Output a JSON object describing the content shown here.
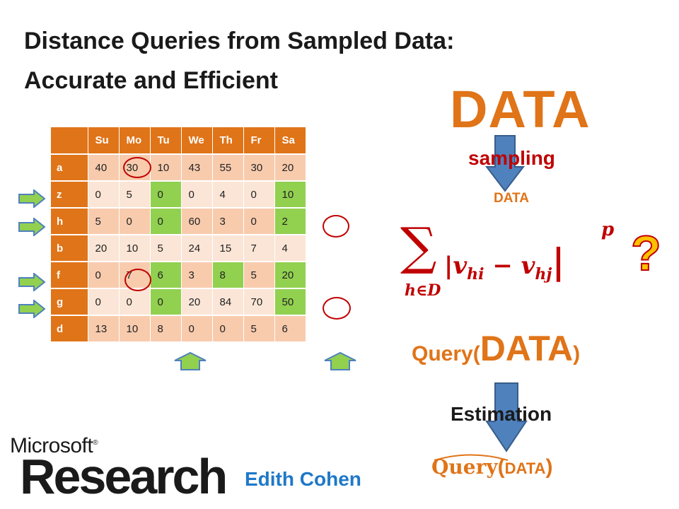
{
  "slide": {
    "title_line1": "Distance Queries from Sampled Data:",
    "title_line2": "Accurate and Efficient",
    "data_big": "DATA",
    "sampling": "sampling",
    "data_small": "DATA",
    "question_mark": "?",
    "query_prefix": "Query(",
    "query_data": "DATA",
    "query_suffix": ")",
    "estimation": "Estimation",
    "qhat_word": "Query",
    "qhat_open": "(",
    "qhat_data": "DATA",
    "qhat_close": ")",
    "author": "Edith Cohen",
    "logo_microsoft": "Microsoft",
    "logo_registered": "®",
    "logo_research": "Research",
    "colors": {
      "orange": "#e07418",
      "green": "#92d050",
      "red": "#c00000",
      "blue": "#1f78c8",
      "arrow_blue": "#4f81bd"
    }
  },
  "table": {
    "columns": [
      "Su",
      "Mo",
      "Tu",
      "We",
      "Th",
      "Fr",
      "Sa"
    ],
    "rows": [
      {
        "label": "a",
        "values": [
          "40",
          "30",
          "10",
          "43",
          "55",
          "30",
          "20"
        ]
      },
      {
        "label": "z",
        "values": [
          "0",
          "5",
          "0",
          "0",
          "4",
          "0",
          "10"
        ]
      },
      {
        "label": "h",
        "values": [
          "5",
          "0",
          "0",
          "60",
          "3",
          "0",
          "2"
        ]
      },
      {
        "label": "b",
        "values": [
          "20",
          "10",
          "5",
          "24",
          "15",
          "7",
          "4"
        ]
      },
      {
        "label": "f",
        "values": [
          "0",
          "7",
          "6",
          "3",
          "8",
          "5",
          "20"
        ]
      },
      {
        "label": "g",
        "values": [
          "0",
          "0",
          "0",
          "20",
          "84",
          "70",
          "50"
        ]
      },
      {
        "label": "d",
        "values": [
          "13",
          "10",
          "8",
          "0",
          "0",
          "5",
          "6"
        ]
      }
    ]
  },
  "formula": {
    "sum_symbol": "∑",
    "subscript": "h∈D",
    "expression": "|v",
    "v1_sub": "hi",
    "minus": " − v",
    "v2_sub": "hj",
    "close": "|",
    "power": "p"
  }
}
